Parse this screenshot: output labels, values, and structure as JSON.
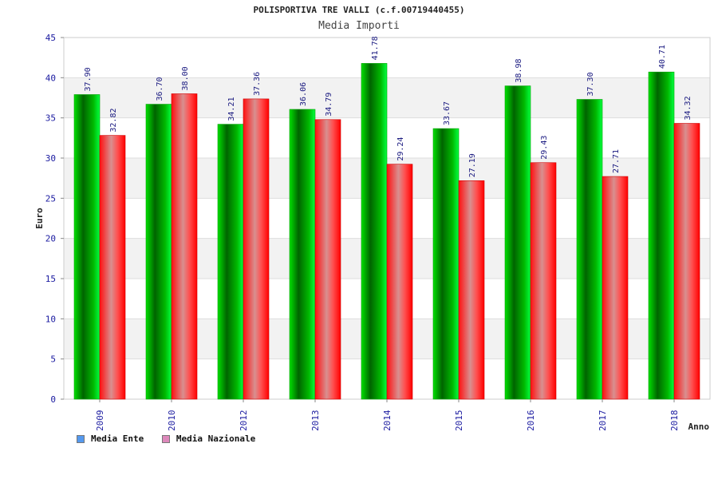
{
  "chart_data": {
    "type": "bar",
    "title": "POLISPORTIVA TRE VALLI (c.f.00719440455)",
    "subtitle": "Media Importi",
    "xlabel": "Anno",
    "ylabel": "Euro",
    "categories": [
      "2009",
      "2010",
      "2012",
      "2013",
      "2014",
      "2015",
      "2016",
      "2017",
      "2018"
    ],
    "ylim": [
      0,
      45
    ],
    "yticks": [
      0,
      5,
      10,
      15,
      20,
      25,
      30,
      35,
      40,
      45
    ],
    "series": [
      {
        "name": "Media Ente",
        "values": [
          37.9,
          36.7,
          34.21,
          36.06,
          41.78,
          33.67,
          38.98,
          37.3,
          40.71
        ],
        "labels": [
          "37.90",
          "36.70",
          "34.21",
          "36.06",
          "41.78",
          "33.67",
          "38.98",
          "37.30",
          "40.71"
        ],
        "color": "#00c000",
        "legend_color": "#5599ee"
      },
      {
        "name": "Media Nazionale",
        "values": [
          32.82,
          38.0,
          37.36,
          34.79,
          29.24,
          27.19,
          29.43,
          27.71,
          34.32
        ],
        "labels": [
          "32.82",
          "38.00",
          "37.36",
          "34.79",
          "29.24",
          "27.19",
          "29.43",
          "27.71",
          "34.32"
        ],
        "color": "#ff0000",
        "legend_color": "#dd88bb"
      }
    ],
    "grid": true,
    "legend_position": "bottom-left"
  }
}
